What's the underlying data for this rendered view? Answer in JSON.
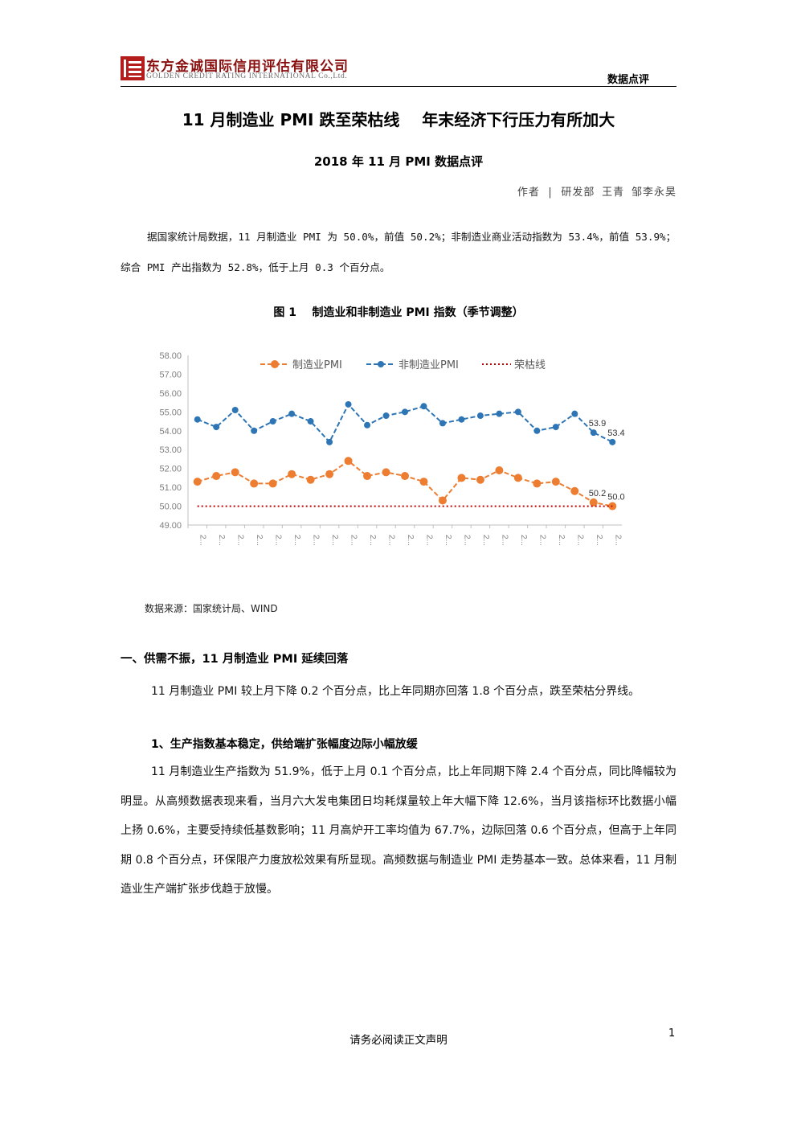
{
  "header": {
    "company_cn": "东方金诚国际信用评估有限公司",
    "company_en": "GOLDEN CREDIT RATING INTERNATIONAL Co.,Ltd.",
    "tag": "数据点评"
  },
  "title": "11 月制造业 PMI 跌至荣枯线    年末经济下行压力有所加大",
  "subtitle": "2018 年 11 月 PMI 数据点评",
  "author": "作者 | 研发部 王青 邹李永昊",
  "intro": "据国家统计局数据，11 月制造业 PMI 为 50.0%，前值 50.2%；非制造业商业活动指数为 53.4%，前值 53.9%；综合 PMI 产出指数为 52.8%，低于上月 0.3 个百分点。",
  "figure_caption": "图 1    制造业和非制造业 PMI 指数（季节调整）",
  "source": "数据来源：国家统计局、WIND",
  "section1_heading": "一、供需不振，11 月制造业 PMI 延续回落",
  "section1_para": "11 月制造业 PMI 较上月下降 0.2 个百分点，比上年同期亦回落 1.8 个百分点，跌至荣枯分界线。",
  "sub1_heading": "1、生产指数基本稳定，供给端扩张幅度边际小幅放缓",
  "sub1_para": "11 月制造业生产指数为 51.9%，低于上月 0.1 个百分点，比上年同期下降 2.4 个百分点，同比降幅较为明显。从高频数据表现来看，当月六大发电集团日均耗煤量较上年大幅下降 12.6%，当月该指标环比数据小幅上扬 0.6%，主要受持续低基数影响；11 月高炉开工率均值为 67.7%，边际回落 0.6 个百分点，但高于上年同期 0.8 个百分点，环保限产力度放松效果有所显现。高频数据与制造业 PMI 走势基本一致。总体来看，11 月制造业生产端扩张步伐趋于放慢。",
  "footer": "请务必阅读正文声明",
  "page_number": "1",
  "chart_data": {
    "type": "line",
    "ylim": [
      49,
      58
    ],
    "yticks": [
      "49.00",
      "50.00",
      "51.00",
      "52.00",
      "53.00",
      "54.00",
      "55.00",
      "56.00",
      "57.00",
      "58.00"
    ],
    "x_tick_label": "2...",
    "legend_position": "top",
    "series": [
      {
        "name": "制造业PMI",
        "color": "#ED7D31",
        "style": "dashed-dot-marker",
        "values": [
          51.3,
          51.6,
          51.8,
          51.2,
          51.2,
          51.7,
          51.4,
          51.7,
          52.4,
          51.6,
          51.8,
          51.6,
          51.3,
          50.3,
          51.5,
          51.4,
          51.9,
          51.5,
          51.2,
          51.3,
          50.8,
          50.2,
          50.0
        ]
      },
      {
        "name": "非制造业PMI",
        "color": "#2E75B6",
        "style": "dashed-dot-marker",
        "values": [
          54.6,
          54.2,
          55.1,
          54.0,
          54.5,
          54.9,
          54.5,
          53.4,
          55.4,
          54.3,
          54.8,
          55.0,
          55.3,
          54.4,
          54.6,
          54.8,
          54.9,
          55.0,
          54.0,
          54.2,
          54.9,
          53.9,
          53.4
        ]
      },
      {
        "name": "荣枯线",
        "color": "#C00000",
        "style": "dotted",
        "values": [
          50,
          50,
          50,
          50,
          50,
          50,
          50,
          50,
          50,
          50,
          50,
          50,
          50,
          50,
          50,
          50,
          50,
          50,
          50,
          50,
          50,
          50,
          50
        ]
      }
    ],
    "data_labels": [
      {
        "series": 1,
        "index": 21,
        "text": "53.9"
      },
      {
        "series": 1,
        "index": 22,
        "text": "53.4"
      },
      {
        "series": 0,
        "index": 21,
        "text": "50.2"
      },
      {
        "series": 0,
        "index": 22,
        "text": "50.0"
      }
    ]
  }
}
